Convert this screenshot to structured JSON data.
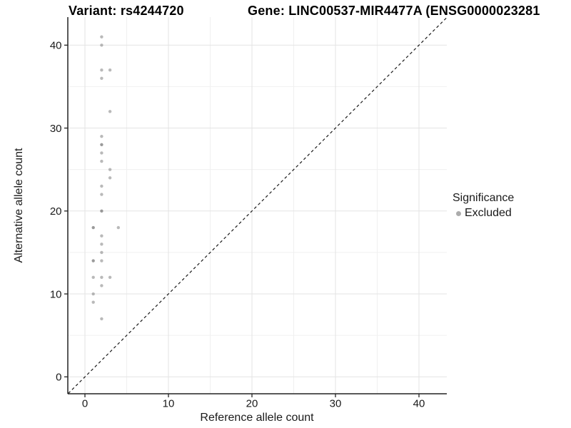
{
  "title": {
    "variant": "Variant: rs4244720",
    "gene": "Gene: LINC00537-MIR4477A (ENSG0000023281"
  },
  "legend": {
    "title": "Significance",
    "items": [
      {
        "label": "Excluded",
        "color": "#808080"
      }
    ]
  },
  "chart_data": {
    "type": "scatter",
    "title_left": "Variant: rs4244720",
    "title_right": "Gene: LINC00537-MIR4477A (ENSG0000023281",
    "xlabel": "Reference allele count",
    "ylabel": "Alternative allele count",
    "x_ticks": [
      0,
      10,
      20,
      30,
      40
    ],
    "y_ticks": [
      0,
      10,
      20,
      30,
      40
    ],
    "minor_gridlines": [
      5,
      15,
      25,
      35
    ],
    "xlim": [
      -2,
      43.3
    ],
    "ylim": [
      -2,
      43.4
    ],
    "grid": true,
    "legend_position": "right",
    "reference_line": {
      "type": "identity-diagonal",
      "style": "dashed",
      "color": "#1a1a1a"
    },
    "series": [
      {
        "name": "Excluded",
        "color": "#808080",
        "points": [
          {
            "x": 2,
            "y": 41,
            "n": 1
          },
          {
            "x": 2,
            "y": 40,
            "n": 1
          },
          {
            "x": 2,
            "y": 37,
            "n": 1
          },
          {
            "x": 3,
            "y": 37,
            "n": 1
          },
          {
            "x": 2,
            "y": 36,
            "n": 1
          },
          {
            "x": 3,
            "y": 32,
            "n": 1
          },
          {
            "x": 2,
            "y": 29,
            "n": 1
          },
          {
            "x": 2,
            "y": 28,
            "n": 2
          },
          {
            "x": 2,
            "y": 27,
            "n": 1
          },
          {
            "x": 2,
            "y": 26,
            "n": 1
          },
          {
            "x": 3,
            "y": 25,
            "n": 1
          },
          {
            "x": 3,
            "y": 24,
            "n": 1
          },
          {
            "x": 2,
            "y": 23,
            "n": 1
          },
          {
            "x": 2,
            "y": 22,
            "n": 1
          },
          {
            "x": 2,
            "y": 20,
            "n": 2
          },
          {
            "x": 1,
            "y": 18,
            "n": 2
          },
          {
            "x": 4,
            "y": 18,
            "n": 1
          },
          {
            "x": 2,
            "y": 17,
            "n": 1
          },
          {
            "x": 2,
            "y": 16,
            "n": 1
          },
          {
            "x": 2,
            "y": 15,
            "n": 1
          },
          {
            "x": 1,
            "y": 14,
            "n": 2
          },
          {
            "x": 2,
            "y": 14,
            "n": 1
          },
          {
            "x": 1,
            "y": 12,
            "n": 1
          },
          {
            "x": 2,
            "y": 12,
            "n": 1
          },
          {
            "x": 3,
            "y": 12,
            "n": 1
          },
          {
            "x": 2,
            "y": 11,
            "n": 1
          },
          {
            "x": 1,
            "y": 10,
            "n": 1
          },
          {
            "x": 1,
            "y": 9,
            "n": 1
          },
          {
            "x": 2,
            "y": 7,
            "n": 1
          }
        ]
      }
    ],
    "colors": {
      "background": "#ffffff",
      "grid_major": "#e3e3e3",
      "grid_minor": "#f0f0f0",
      "axis_line": "#222222",
      "tick_text": "#1a1a1a",
      "point": "#808080"
    }
  }
}
